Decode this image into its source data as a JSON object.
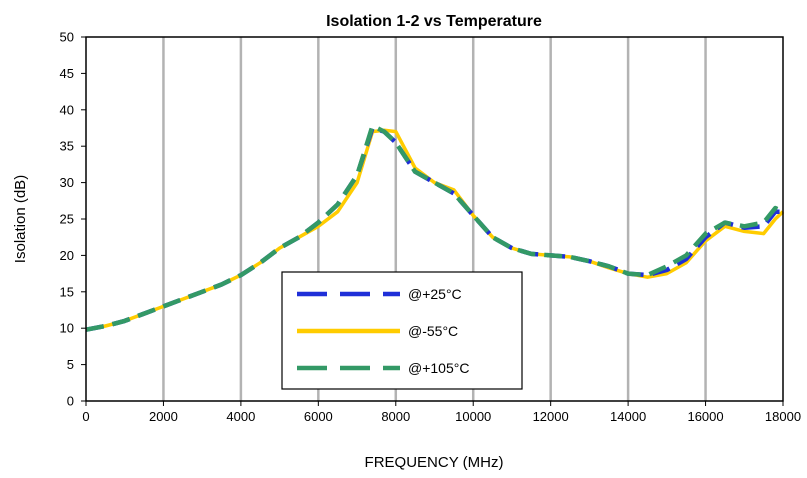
{
  "chart_data": {
    "type": "line",
    "title": "Isolation 1-2 vs Temperature",
    "xlabel": "FREQUENCY (MHz)",
    "ylabel": "Isolation (dB)",
    "xlim": [
      0,
      18000
    ],
    "ylim": [
      0,
      50
    ],
    "xticks": [
      0,
      2000,
      4000,
      6000,
      8000,
      10000,
      12000,
      14000,
      16000,
      18000
    ],
    "yticks": [
      0,
      5,
      10,
      15,
      20,
      25,
      30,
      35,
      40,
      45,
      50
    ],
    "grid": "vertical",
    "legend_position": "lower-center",
    "series": [
      {
        "name": "@+25°C",
        "color": "#1f2fd8",
        "style": "dashed",
        "x": [
          0,
          500,
          1000,
          1500,
          2000,
          2500,
          3000,
          3500,
          4000,
          4500,
          5000,
          5500,
          6000,
          6500,
          7000,
          7400,
          7700,
          8000,
          8500,
          9000,
          9500,
          10000,
          10500,
          11000,
          11500,
          12000,
          12500,
          13000,
          13500,
          14000,
          14500,
          15000,
          15500,
          16000,
          16500,
          17000,
          17500,
          17800,
          18000
        ],
        "y": [
          9.8,
          10.3,
          11.0,
          12.0,
          13.0,
          14.0,
          15.0,
          16.0,
          17.3,
          19.0,
          21.0,
          22.5,
          24.5,
          27.0,
          31.0,
          37.5,
          37.0,
          35.5,
          31.5,
          30.0,
          28.5,
          25.5,
          22.5,
          21.0,
          20.2,
          20.0,
          19.8,
          19.2,
          18.5,
          17.5,
          17.3,
          18.0,
          19.5,
          22.5,
          24.5,
          23.8,
          24.0,
          26.0,
          26.0
        ]
      },
      {
        "name": "@-55°C",
        "color": "#ffcc00",
        "style": "solid",
        "x": [
          0,
          500,
          1000,
          1500,
          2000,
          2500,
          3000,
          3500,
          4000,
          4500,
          5000,
          5500,
          6000,
          6500,
          7000,
          7400,
          7700,
          8000,
          8500,
          9000,
          9500,
          10000,
          10500,
          11000,
          11500,
          12000,
          12500,
          13000,
          13500,
          14000,
          14500,
          15000,
          15500,
          16000,
          16500,
          17000,
          17500,
          17800,
          18000
        ],
        "y": [
          9.8,
          10.3,
          11.0,
          12.0,
          13.0,
          14.0,
          15.0,
          16.0,
          17.3,
          19.0,
          21.0,
          22.5,
          24.0,
          26.0,
          30.0,
          37.0,
          37.2,
          37.0,
          32.0,
          30.0,
          29.0,
          25.5,
          22.5,
          21.0,
          20.2,
          20.0,
          19.8,
          19.2,
          18.3,
          17.5,
          17.0,
          17.5,
          19.0,
          22.0,
          24.0,
          23.3,
          23.0,
          25.0,
          26.0
        ]
      },
      {
        "name": "@+105°C",
        "color": "#339966",
        "style": "dashed",
        "x": [
          0,
          500,
          1000,
          1500,
          2000,
          2500,
          3000,
          3500,
          4000,
          4500,
          5000,
          5500,
          6000,
          6500,
          7000,
          7400,
          7700,
          8000,
          8500,
          9000,
          9500,
          10000,
          10500,
          11000,
          11500,
          12000,
          12500,
          13000,
          13500,
          14000,
          14500,
          15000,
          15500,
          16000,
          16500,
          17000,
          17500,
          17800,
          18000
        ],
        "y": [
          9.8,
          10.3,
          11.0,
          12.0,
          13.0,
          14.0,
          15.0,
          16.0,
          17.3,
          19.0,
          21.0,
          22.5,
          24.5,
          27.0,
          31.0,
          37.8,
          37.0,
          35.5,
          31.5,
          30.0,
          28.5,
          25.5,
          22.5,
          21.0,
          20.2,
          20.0,
          19.8,
          19.2,
          18.5,
          17.5,
          17.3,
          18.5,
          20.0,
          23.0,
          24.5,
          24.0,
          24.5,
          26.5,
          26.0
        ]
      }
    ]
  }
}
